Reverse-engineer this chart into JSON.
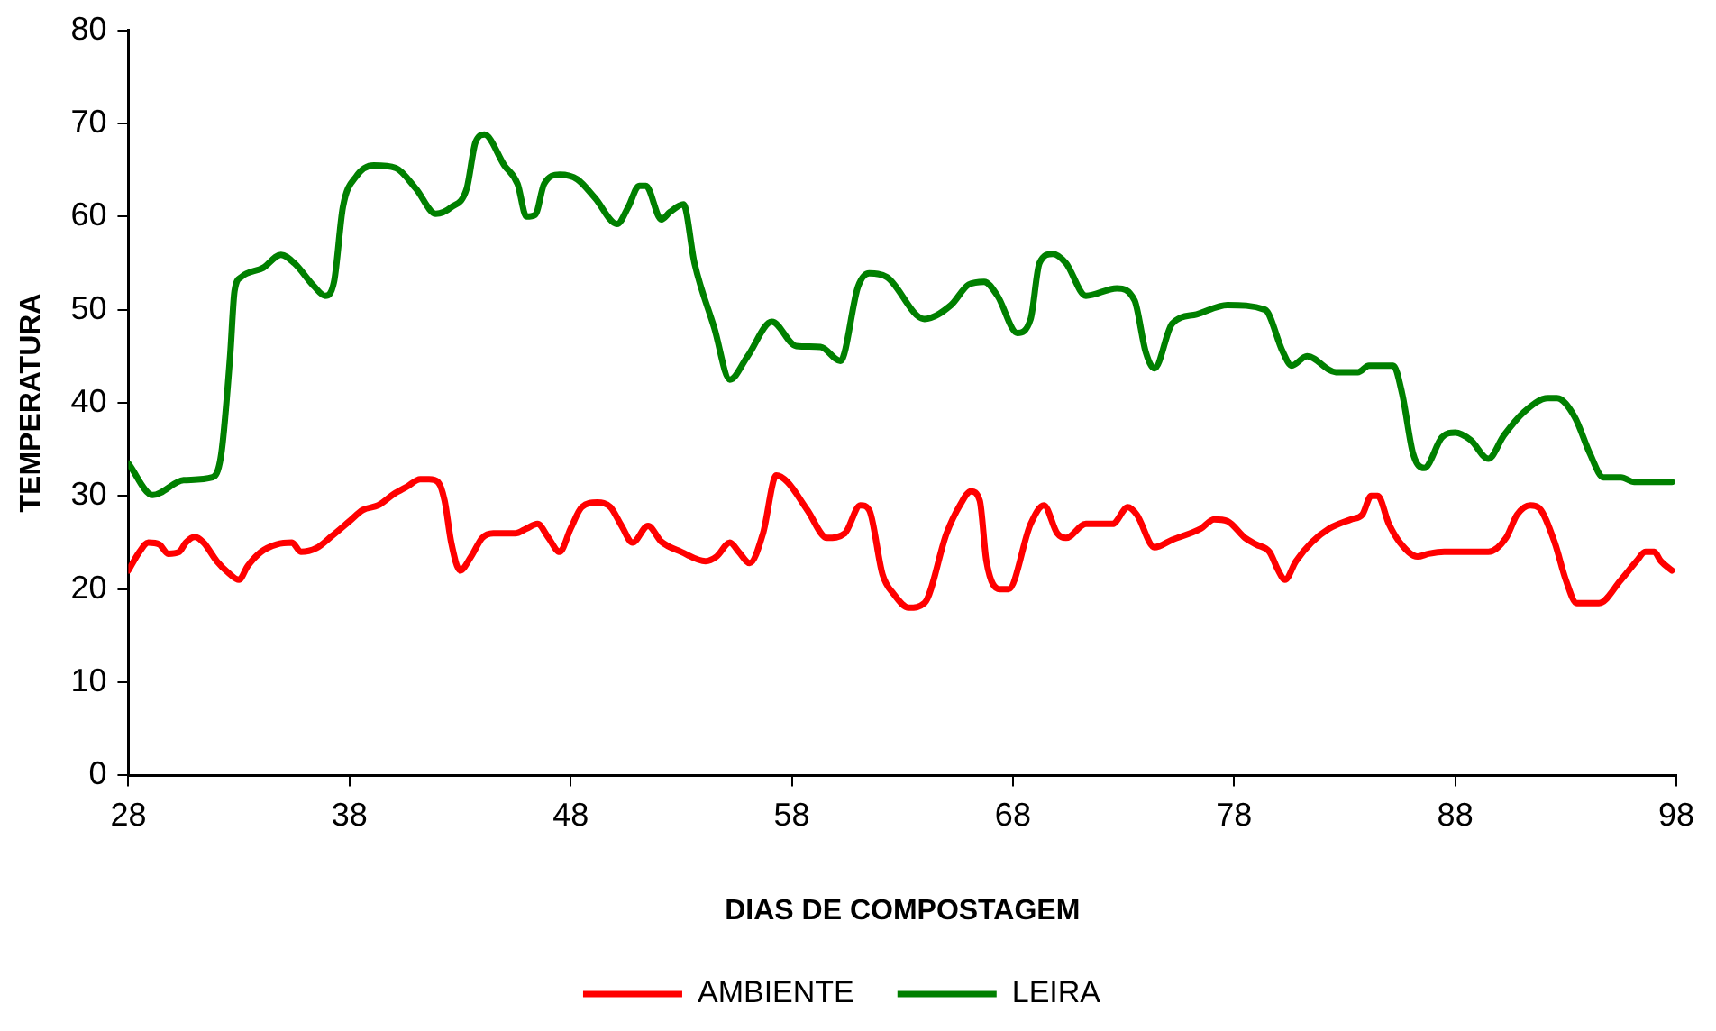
{
  "chart_data": {
    "type": "line",
    "xlabel": "DIAS DE COMPOSTAGEM",
    "ylabel": "TEMPERATURA",
    "xlim": [
      28,
      98
    ],
    "xticks": [
      28,
      38,
      48,
      58,
      68,
      78,
      88,
      98
    ],
    "ylim": [
      0,
      80
    ],
    "yticks": [
      0,
      10,
      20,
      30,
      40,
      50,
      60,
      70,
      80
    ],
    "grid": false,
    "legend": "bottom",
    "marker": "none",
    "line_style": "solid",
    "series": [
      {
        "name": "AMBIENTE",
        "color": "#ff0000",
        "x": [
          28,
          28.5,
          28.9,
          29.4,
          29.8,
          30.3,
          30.6,
          31,
          31.4,
          32,
          32.5,
          33,
          33.4,
          34,
          34.7,
          35.4,
          35.8,
          36.5,
          37.2,
          38,
          38.6,
          39.3,
          40,
          40.6,
          41.2,
          41.6,
          42,
          42.3,
          42.6,
          43,
          43.5,
          44,
          44.5,
          45.5,
          46,
          46.5,
          47,
          47.5,
          48,
          48.5,
          49.2,
          49.8,
          50.3,
          50.8,
          51.5,
          52.1,
          53,
          54.1,
          54.6,
          55.2,
          55.6,
          56.1,
          56.7,
          57.3,
          57.8,
          58.7,
          59.6,
          60.4,
          61.1,
          61.5,
          62.1,
          62.6,
          63.3,
          64,
          65,
          65.6,
          66.1,
          66.5,
          66.8,
          67.4,
          67.8,
          68.8,
          69.4,
          70,
          70.4,
          71.3,
          72.5,
          73.2,
          73.6,
          74.4,
          75.2,
          76.5,
          77.1,
          77.7,
          78.5,
          79,
          79.6,
          80,
          80.3,
          80.8,
          81.5,
          82.3,
          83.3,
          83.8,
          84.2,
          84.5,
          85,
          85.5,
          86.3,
          86.8,
          87.5,
          89.5,
          90.3,
          90.8,
          91.4,
          91.8,
          92.5,
          93,
          93.5,
          94.5,
          95.5,
          96.2,
          96.6,
          97,
          97.3,
          97.8
        ],
        "values": [
          22,
          24,
          25,
          24.8,
          23.8,
          24,
          25,
          25.6,
          25,
          23,
          21.8,
          21,
          22.5,
          24,
          24.8,
          25,
          24,
          24.4,
          25.7,
          27.3,
          28.5,
          29,
          30.2,
          31,
          31.8,
          31.8,
          31.5,
          29.5,
          25,
          22,
          23.5,
          25.5,
          26,
          26,
          26.5,
          27,
          25.5,
          24,
          26.5,
          28.8,
          29.3,
          28.8,
          26.8,
          25,
          26.8,
          25.1,
          24,
          23,
          23.5,
          25,
          24,
          22.8,
          26,
          32.2,
          31.5,
          28.5,
          25.5,
          26,
          29,
          28.5,
          21.6,
          19.5,
          18,
          18.5,
          26,
          29,
          30.5,
          29.5,
          23,
          20,
          20,
          27,
          29,
          26,
          25.5,
          27,
          27,
          28.8,
          28,
          24.5,
          25.3,
          26.5,
          27.5,
          27.3,
          25.5,
          24.8,
          24,
          22,
          21,
          23,
          25,
          26.5,
          27.5,
          28,
          30,
          30,
          27,
          25,
          23.5,
          23.8,
          24,
          24,
          25.5,
          28,
          29,
          28.7,
          25,
          21,
          18.5,
          18.5,
          21,
          23,
          24,
          24,
          23,
          22
        ]
      },
      {
        "name": "LEIRA",
        "color": "#008000",
        "x": [
          28,
          29.1,
          30.5,
          31.8,
          32.2,
          32.6,
          32.8,
          33.1,
          34.1,
          34.9,
          35.5,
          36.4,
          36.9,
          37.3,
          37.7,
          38.3,
          39.1,
          40.1,
          41,
          41.9,
          42.6,
          43.3,
          43.7,
          44.1,
          45,
          45.6,
          46,
          46.4,
          46.8,
          47.5,
          48.3,
          49.1,
          50.1,
          50.6,
          51.1,
          51.4,
          52.1,
          52.5,
          53.1,
          53.6,
          54.5,
          55.2,
          56,
          57.1,
          58.2,
          59.3,
          60.2,
          61,
          61.5,
          62.3,
          64,
          65.2,
          66,
          66.7,
          67.3,
          68.2,
          68.8,
          69.2,
          69.8,
          70.4,
          71.3,
          72.7,
          73.5,
          74,
          74.4,
          75.2,
          76.3,
          77.7,
          79.4,
          80.2,
          80.6,
          81.3,
          82.6,
          83.6,
          84.1,
          85.2,
          85.6,
          86.1,
          86.6,
          87.4,
          88,
          88.7,
          89.5,
          90.2,
          91.1,
          92.2,
          92.6,
          93.4,
          94.1,
          94.7,
          95.5,
          96.1,
          97.8
        ],
        "values": [
          33.5,
          30.1,
          31.7,
          32,
          34.5,
          45,
          52,
          53.5,
          54.5,
          55.9,
          55,
          52.5,
          51.5,
          53,
          61,
          64.3,
          65.5,
          65.2,
          63,
          60.3,
          61,
          63,
          68,
          68.8,
          65.5,
          63.5,
          60,
          60.2,
          63.5,
          64.5,
          64,
          62,
          59.2,
          61,
          63.3,
          63.3,
          59.7,
          60.5,
          61.3,
          55,
          48,
          42.5,
          45,
          48.7,
          46.1,
          46,
          44.5,
          52.5,
          53.9,
          53.5,
          49,
          50.5,
          52.7,
          53,
          51.5,
          47.5,
          49,
          55,
          56,
          55,
          51.5,
          52.3,
          51,
          45.5,
          43.7,
          48.5,
          49.5,
          50.5,
          50,
          45.5,
          44,
          45,
          43.3,
          43.3,
          44,
          44,
          41,
          34.5,
          33,
          36.3,
          36.8,
          36,
          34,
          36.5,
          39,
          40.5,
          40.5,
          38.5,
          34.5,
          32,
          32,
          31.5,
          31.5
        ]
      }
    ]
  }
}
